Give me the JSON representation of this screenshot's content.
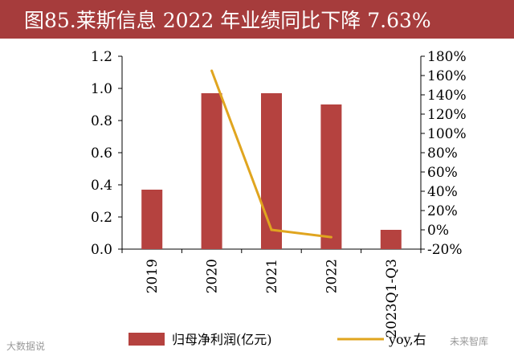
{
  "header": {
    "title": "图85.莱斯信息 2022 年业绩同比下降 7.63%"
  },
  "chart_data": {
    "type": "bar",
    "categories": [
      "2019",
      "2020",
      "2021",
      "2022",
      "2023Q1-Q3"
    ],
    "series": [
      {
        "name": "归母净利润(亿元)",
        "type": "bar",
        "axis": "left",
        "values": [
          0.37,
          0.97,
          0.97,
          0.9,
          0.12
        ]
      },
      {
        "name": "yoy,右",
        "type": "line",
        "axis": "right",
        "values": [
          null,
          1.65,
          0.0,
          -0.076,
          null
        ]
      }
    ],
    "y_left": {
      "min": 0,
      "max": 1.2,
      "step": 0.2,
      "tick_labels": [
        "0.0",
        "0.2",
        "0.4",
        "0.6",
        "0.8",
        "1.0",
        "1.2"
      ]
    },
    "y_right": {
      "min": -0.2,
      "max": 1.8,
      "step": 0.2,
      "tick_labels": [
        "-20%",
        "0%",
        "20%",
        "40%",
        "60%",
        "80%",
        "100%",
        "120%",
        "140%",
        "160%",
        "180%"
      ]
    },
    "grid": false,
    "legend_position": "bottom",
    "colors": {
      "bar": "#b5423f",
      "line": "#e0a51f",
      "title_bg": "#a63c3c"
    }
  },
  "watermarks": {
    "left": "大数据说",
    "right": "未来智库"
  }
}
